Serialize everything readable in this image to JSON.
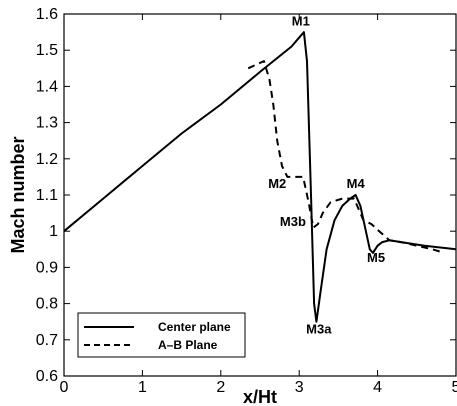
{
  "chart_data": {
    "type": "line",
    "xlabel": "x/Ht",
    "ylabel": "Mach number",
    "xlim": [
      0,
      5
    ],
    "ylim": [
      0.6,
      1.6
    ],
    "x_ticks": [
      0,
      1,
      2,
      3,
      4,
      5
    ],
    "y_ticks": [
      0.6,
      0.7,
      0.8,
      0.9,
      1,
      1.1,
      1.2,
      1.3,
      1.4,
      1.5,
      1.6
    ],
    "x_tick_labels": [
      "0",
      "1",
      "2",
      "3",
      "4",
      "5"
    ],
    "y_tick_labels": [
      "0.6",
      "0.7",
      "0.8",
      "0.9",
      "1",
      "1.1",
      "1.2",
      "1.3",
      "1.4",
      "1.5",
      "1.6"
    ],
    "grid": false,
    "legend_position": "bottom-left",
    "series": [
      {
        "name": "Center plane",
        "style": "solid",
        "color": "#000000",
        "x": [
          0,
          0.5,
          1.0,
          1.5,
          2.0,
          2.5,
          2.9,
          3.02,
          3.06,
          3.1,
          3.15,
          3.19,
          3.22,
          3.27,
          3.35,
          3.45,
          3.55,
          3.65,
          3.72,
          3.78,
          3.84,
          3.9,
          3.94,
          4.0,
          4.06,
          4.15,
          4.3,
          4.6,
          5.0
        ],
        "values": [
          1.0,
          1.09,
          1.18,
          1.27,
          1.35,
          1.44,
          1.51,
          1.54,
          1.55,
          1.47,
          1.1,
          0.8,
          0.75,
          0.83,
          0.95,
          1.03,
          1.07,
          1.09,
          1.1,
          1.07,
          1.01,
          0.95,
          0.94,
          0.96,
          0.97,
          0.975,
          0.97,
          0.96,
          0.95
        ]
      },
      {
        "name": "A–B Plane",
        "style": "dashed",
        "color": "#000000",
        "x": [
          2.35,
          2.45,
          2.55,
          2.62,
          2.67,
          2.72,
          2.78,
          2.85,
          2.95,
          3.05,
          3.12,
          3.18,
          3.24,
          3.3,
          3.4,
          3.55,
          3.7,
          3.76,
          3.82,
          3.92,
          4.02,
          4.15,
          4.3,
          4.5,
          4.7,
          4.85
        ],
        "values": [
          1.45,
          1.46,
          1.47,
          1.42,
          1.35,
          1.25,
          1.18,
          1.15,
          1.15,
          1.15,
          1.08,
          1.01,
          1.02,
          1.05,
          1.08,
          1.09,
          1.09,
          1.06,
          1.03,
          1.02,
          1.0,
          0.975,
          0.97,
          0.96,
          0.95,
          0.94
        ]
      }
    ],
    "annotations": [
      {
        "text": "M1",
        "x": 3.02,
        "y": 1.568
      },
      {
        "text": "M2",
        "x": 2.72,
        "y": 1.12
      },
      {
        "text": "M3b",
        "x": 2.92,
        "y": 1.015
      },
      {
        "text": "M4",
        "x": 3.72,
        "y": 1.12
      },
      {
        "text": "M5",
        "x": 3.98,
        "y": 0.915
      },
      {
        "text": "M3a",
        "x": 3.25,
        "y": 0.718
      }
    ]
  }
}
